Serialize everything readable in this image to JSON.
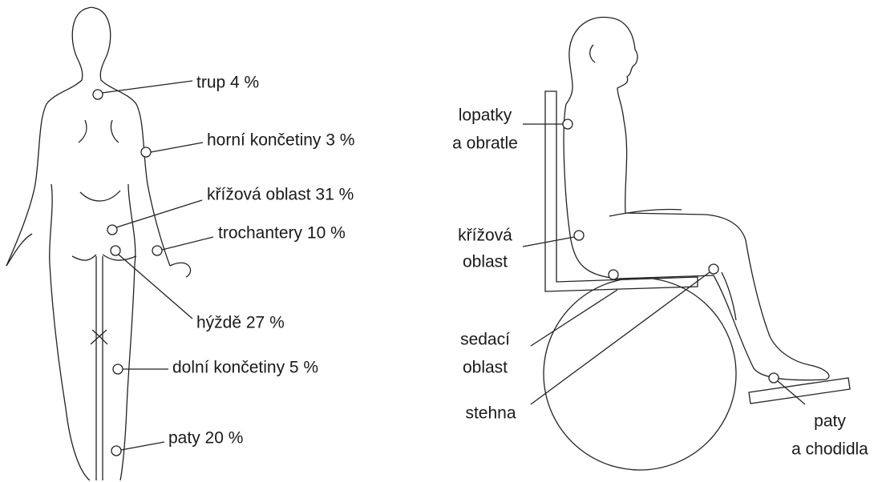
{
  "left_figure": {
    "labels": [
      "trup 4 %",
      "horní končetiny 3 %",
      "křížová oblast 31 %",
      "trochantery 10 %",
      "hýždě 27 %",
      "dolní končetiny 5 %",
      "paty 20 %"
    ]
  },
  "right_figure": {
    "labels": [
      {
        "lines": [
          "lopatky",
          "a obratle"
        ]
      },
      {
        "lines": [
          "křížová",
          "oblast"
        ]
      },
      {
        "lines": [
          "sedací",
          "oblast"
        ]
      },
      {
        "lines": [
          "stehna"
        ]
      },
      {
        "lines": [
          "paty",
          "a chodidla"
        ]
      }
    ]
  }
}
